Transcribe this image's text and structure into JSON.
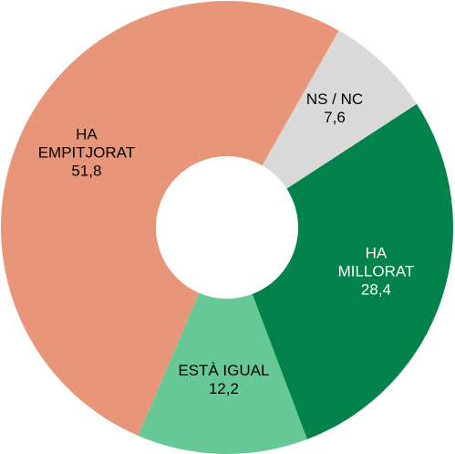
{
  "chart_data": {
    "type": "donut",
    "categories": [
      "HA\nMILLORAT",
      "ESTÀ IGUAL",
      "HA\nEMPITJORAT",
      "NS / NC"
    ],
    "values": [
      28.4,
      12.2,
      51.8,
      7.6
    ],
    "value_labels": [
      "28,4",
      "12,2",
      "51,8",
      "7,6"
    ],
    "colors": [
      "#00824a",
      "#66c995",
      "#e8967a",
      "#d9d9d9"
    ],
    "label_colors": [
      "#ffffff",
      "#000000",
      "#000000",
      "#000000"
    ]
  }
}
